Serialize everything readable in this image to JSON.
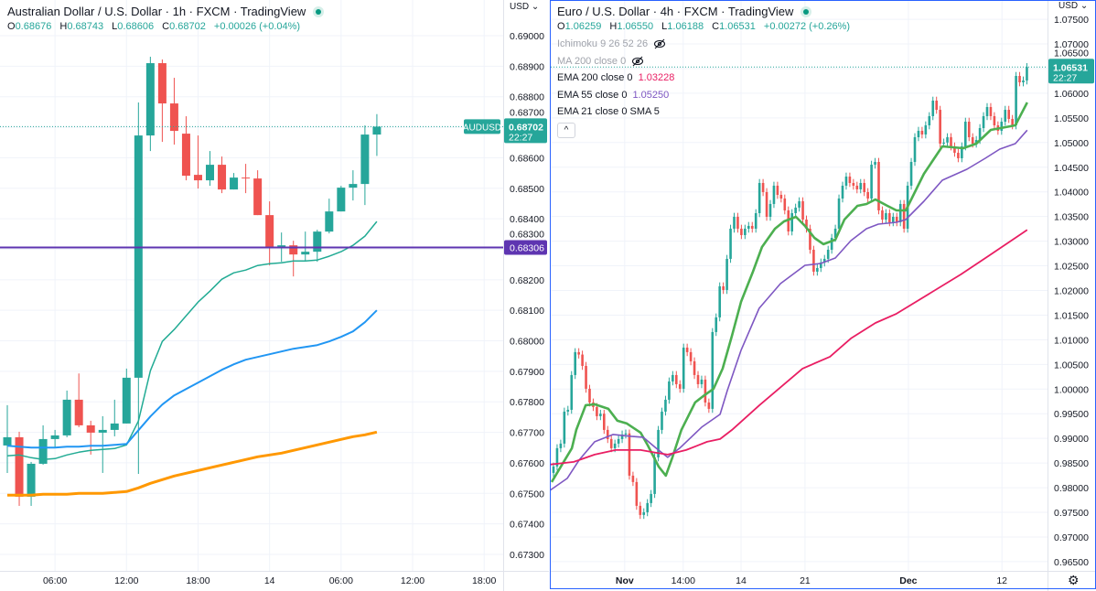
{
  "left_chart": {
    "title": "Australian Dollar / U.S. Dollar · 1h · FXCM · TradingView",
    "ohlc": {
      "o_label": "O",
      "o": "0.68676",
      "h_label": "H",
      "h": "0.68743",
      "l_label": "L",
      "l": "0.68606",
      "c_label": "C",
      "c": "0.68702",
      "change": "+0.00026 (+0.04%)"
    },
    "currency": "USD",
    "symbol_tag": "AUDUSD",
    "last_price": "0.68702",
    "countdown": "22:27",
    "hline_label": "0.68306"
  },
  "right_chart": {
    "title": "Euro / U.S. Dollar · 4h · FXCM · TradingView",
    "ohlc": {
      "o_label": "O",
      "o": "1.06259",
      "h_label": "H",
      "h": "1.06550",
      "l_label": "L",
      "l": "1.06188",
      "c_label": "C",
      "c": "1.06531",
      "change": "+0.00272 (+0.26%)"
    },
    "currency": "USD",
    "last_price": "1.06531",
    "countdown": "22:27",
    "indicators": [
      {
        "label": "Ichimoku 9 26 52 26",
        "hidden": true
      },
      {
        "label": "MA 200 close 0",
        "hidden": true
      },
      {
        "label": "EMA 200 close 0",
        "value": "1.03228",
        "color": "#e91e63"
      },
      {
        "label": "EMA 55 close 0",
        "value": "1.05250",
        "color": "#7e57c2"
      },
      {
        "label": "EMA 21 close 0 SMA 5"
      }
    ],
    "collapse_label": "^",
    "settings_icon": "gear-icon"
  },
  "colors": {
    "up": "#26a69a",
    "down": "#ef5350",
    "accent": "#2962ff",
    "hline": "#5e35b1"
  },
  "chart_data": [
    {
      "type": "candlestick",
      "symbol": "AUDUSD",
      "interval": "1h",
      "ylim": [
        0.67246,
        0.69117
      ],
      "y_ticks": [
        "0.69000",
        "0.68900",
        "0.68800",
        "0.68700",
        "0.68600",
        "0.68500",
        "0.68400",
        "0.68300",
        "0.68200",
        "0.68100",
        "0.68000",
        "0.67900",
        "0.67800",
        "0.67700",
        "0.67600",
        "0.67500",
        "0.67400",
        "0.67300"
      ],
      "x_ticks": [
        {
          "label": "06:00",
          "index": 4
        },
        {
          "label": "12:00",
          "index": 10
        },
        {
          "label": "18:00",
          "index": 16
        },
        {
          "label": "14",
          "index": 22
        },
        {
          "label": "06:00",
          "index": 28
        },
        {
          "label": "12:00",
          "index": 34
        },
        {
          "label": "18:00",
          "index": 40
        }
      ],
      "candles": [
        [
          0.67657,
          0.67789,
          0.67567,
          0.67684
        ],
        [
          0.67684,
          0.67702,
          0.67459,
          0.67489
        ],
        [
          0.67489,
          0.67603,
          0.67459,
          0.67597
        ],
        [
          0.67597,
          0.67723,
          0.67594,
          0.67678
        ],
        [
          0.67678,
          0.67708,
          0.67648,
          0.6769
        ],
        [
          0.6769,
          0.67837,
          0.67684,
          0.67807
        ],
        [
          0.67807,
          0.67893,
          0.67717,
          0.67723
        ],
        [
          0.67723,
          0.67738,
          0.67627,
          0.67699
        ],
        [
          0.67699,
          0.67753,
          0.67567,
          0.67708
        ],
        [
          0.67708,
          0.67807,
          0.67687,
          0.67729
        ],
        [
          0.67729,
          0.67909,
          0.67729,
          0.67879
        ],
        [
          0.67879,
          0.68781,
          0.67564,
          0.68673
        ],
        [
          0.68673,
          0.68931,
          0.68622,
          0.6891
        ],
        [
          0.6891,
          0.68922,
          0.68652,
          0.68778
        ],
        [
          0.68778,
          0.68862,
          0.68643,
          0.68688
        ],
        [
          0.68679,
          0.68736,
          0.68526,
          0.68541
        ],
        [
          0.68544,
          0.68673,
          0.68499,
          0.68526
        ],
        [
          0.68526,
          0.68622,
          0.68508,
          0.68577
        ],
        [
          0.68577,
          0.68604,
          0.68484,
          0.68496
        ],
        [
          0.68496,
          0.6855,
          0.68496,
          0.68535
        ],
        [
          0.68535,
          0.6858,
          0.68484,
          0.68532
        ],
        [
          0.68532,
          0.68559,
          0.68412,
          0.68412
        ],
        [
          0.68412,
          0.68457,
          0.68247,
          0.68307
        ],
        [
          0.68307,
          0.68355,
          0.68259,
          0.68313
        ],
        [
          0.68313,
          0.68328,
          0.68211,
          0.68283
        ],
        [
          0.68283,
          0.68358,
          0.68262,
          0.68292
        ],
        [
          0.68292,
          0.68364,
          0.68259,
          0.68358
        ],
        [
          0.68358,
          0.68466,
          0.68352,
          0.68424
        ],
        [
          0.68424,
          0.68508,
          0.68424,
          0.68502
        ],
        [
          0.68502,
          0.68559,
          0.6846,
          0.68514
        ],
        [
          0.68514,
          0.68706,
          0.68445,
          0.68676
        ],
        [
          0.68676,
          0.68743,
          0.68606,
          0.68702
        ]
      ],
      "series": [
        {
          "name": "EMA fast",
          "color": "#22ab94",
          "width": 1.5,
          "values": [
            0.67623,
            0.67626,
            0.67617,
            0.67611,
            0.67614,
            0.67626,
            0.67635,
            0.67641,
            0.67644,
            0.67647,
            0.67659,
            0.67737,
            0.67902,
            0.67998,
            0.68037,
            0.68082,
            0.68127,
            0.68163,
            0.68202,
            0.68223,
            0.68232,
            0.68247,
            0.68253,
            0.68256,
            0.68262,
            0.68262,
            0.68265,
            0.68277,
            0.68292,
            0.68313,
            0.68343,
            0.68391
          ]
        },
        {
          "name": "EMA mid",
          "color": "#2196f3",
          "width": 2,
          "values": [
            0.67656,
            0.67653,
            0.6765,
            0.6765,
            0.6765,
            0.67653,
            0.67653,
            0.67656,
            0.67656,
            0.67659,
            0.67662,
            0.67707,
            0.67752,
            0.67791,
            0.67821,
            0.67842,
            0.67863,
            0.67884,
            0.67905,
            0.67923,
            0.67938,
            0.67947,
            0.67956,
            0.67965,
            0.67974,
            0.6798,
            0.67986,
            0.67998,
            0.68013,
            0.68031,
            0.68061,
            0.681
          ]
        },
        {
          "name": "EMA slow",
          "color": "#ff9800",
          "width": 3,
          "values": [
            0.67494,
            0.67494,
            0.67494,
            0.67497,
            0.67497,
            0.67497,
            0.675,
            0.675,
            0.675,
            0.67503,
            0.67506,
            0.67518,
            0.67533,
            0.67545,
            0.67557,
            0.67566,
            0.67575,
            0.67584,
            0.67593,
            0.67602,
            0.67611,
            0.6762,
            0.67626,
            0.67632,
            0.67641,
            0.6765,
            0.67659,
            0.67668,
            0.67677,
            0.67686,
            0.67692,
            0.67701
          ]
        }
      ],
      "hline": 0.68306,
      "last_price": 0.68702
    },
    {
      "type": "candlestick",
      "symbol": "EURUSD",
      "interval": "4h",
      "ylim": [
        0.96313,
        1.07891
      ],
      "y_ticks": [
        "1.07500",
        "1.07000",
        "1.06500",
        "1.06000",
        "1.05500",
        "1.05000",
        "1.04500",
        "1.04000",
        "1.03500",
        "1.03000",
        "1.02500",
        "1.02000",
        "1.01500",
        "1.01000",
        "1.00500",
        "1.00000",
        "0.99500",
        "0.99000",
        "0.98500",
        "0.98000",
        "0.97500",
        "0.97000",
        "0.96500"
      ],
      "x_ticks": [
        {
          "label": "Nov",
          "index": 19.7,
          "bold": true
        },
        {
          "label": "14:00",
          "index": 35.9
        },
        {
          "label": "14",
          "index": 51.9
        },
        {
          "label": "21",
          "index": 69.6
        },
        {
          "label": "Dec",
          "index": 98.2,
          "bold": true
        },
        {
          "label": "12",
          "index": 124.1
        }
      ],
      "first_open": 0.983,
      "approx_wick": 0.0008,
      "closes": [
        0.9843,
        0.98801,
        0.98894,
        0.99543,
        0.9958,
        1.00285,
        1.00749,
        1.007,
        1.0047,
        1.00007,
        0.99728,
        0.99636,
        0.9945,
        0.995,
        0.99172,
        0.98986,
        0.98801,
        0.98894,
        0.98986,
        0.99079,
        0.991,
        0.98244,
        0.98115,
        0.97632,
        0.97447,
        0.97502,
        0.97688,
        0.97873,
        0.98615,
        0.99172,
        0.99543,
        0.99784,
        1.00155,
        1.00285,
        1.00099,
        1.00007,
        1.00841,
        1.00749,
        1.00563,
        1.00285,
        1.00099,
        1.00192,
        0.99728,
        0.99599,
        1.01157,
        1.01454,
        1.02084,
        1.0201,
        1.02641,
        1.03253,
        1.03494,
        1.03253,
        1.03123,
        1.03253,
        1.03309,
        1.03253,
        1.03568,
        1.0418,
        1.03995,
        1.03494,
        1.03754,
        1.04125,
        1.03939,
        1.03865,
        1.03624,
        1.03197,
        1.03568,
        1.0368,
        1.03809,
        1.03438,
        1.03253,
        1.02826,
        1.02381,
        1.02455,
        1.02567,
        1.02641,
        1.02826,
        1.03067,
        1.03253,
        1.03865,
        1.04125,
        1.0431,
        1.0418,
        1.04125,
        1.04051,
        1.0418,
        1.03995,
        1.03865,
        1.04551,
        1.04607,
        1.03624,
        1.03438,
        1.03568,
        1.03383,
        1.03494,
        1.03383,
        1.03754,
        1.03253,
        1.04125,
        1.04607,
        1.05108,
        1.05238,
        1.05164,
        1.05349,
        1.05535,
        1.0585,
        1.05664,
        1.04978,
        1.05,
        1.05108,
        1.04922,
        1.04793,
        1.04681,
        1.04922,
        1.05423,
        1.05108,
        1.04978,
        1.05052,
        1.05293,
        1.05535,
        1.0572,
        1.05535,
        1.05349,
        1.05238,
        1.05423,
        1.05664,
        1.05479,
        1.05349,
        1.06351,
        1.06221,
        1.06259,
        1.06531
      ],
      "series": [
        {
          "name": "EMA 21 close 0 SMA 5",
          "color": "#4caf50",
          "width": 2.6,
          "points": [
            [
              -0.5,
              0.98115
            ],
            [
              2.5,
              0.98486
            ],
            [
              5.1,
              0.98801
            ],
            [
              6.3,
              0.99172
            ],
            [
              8.9,
              0.99673
            ],
            [
              11.4,
              0.99691
            ],
            [
              15.2,
              0.99599
            ],
            [
              17.7,
              0.99357
            ],
            [
              20.3,
              0.99302
            ],
            [
              24.1,
              0.99116
            ],
            [
              26.1,
              0.98857
            ],
            [
              29.1,
              0.9843
            ],
            [
              31.1,
              0.98244
            ],
            [
              32.9,
              0.98615
            ],
            [
              35.4,
              0.99172
            ],
            [
              39.2,
              0.99728
            ],
            [
              41.8,
              0.99877
            ],
            [
              44.3,
              1.00007
            ],
            [
              46.8,
              1.00415
            ],
            [
              49.4,
              1.01083
            ],
            [
              51.9,
              1.01769
            ],
            [
              55.2,
              1.02381
            ],
            [
              57.7,
              1.02882
            ],
            [
              61.3,
              1.03253
            ],
            [
              63.8,
              1.03401
            ],
            [
              67.1,
              1.03494
            ],
            [
              69.6,
              1.03309
            ],
            [
              72.2,
              1.03067
            ],
            [
              74.7,
              1.02938
            ],
            [
              78.0,
              1.0303
            ],
            [
              80.5,
              1.03438
            ],
            [
              84.1,
              1.03717
            ],
            [
              86.6,
              1.03754
            ],
            [
              89.1,
              1.03846
            ],
            [
              92.4,
              1.03717
            ],
            [
              94.9,
              1.03624
            ],
            [
              97.5,
              1.03624
            ],
            [
              102.5,
              1.04366
            ],
            [
              107.6,
              1.04922
            ],
            [
              113.4,
              1.04885
            ],
            [
              117.0,
              1.04978
            ],
            [
              121.0,
              1.05256
            ],
            [
              127.8,
              1.05349
            ],
            [
              131.1,
              1.05813
            ]
          ]
        },
        {
          "name": "EMA 55 close 0",
          "color": "#7e57c2",
          "width": 1.6,
          "points": [
            [
              -1.3,
              0.97929
            ],
            [
              3.8,
              0.98189
            ],
            [
              7.1,
              0.9856
            ],
            [
              11.4,
              0.98931
            ],
            [
              16.5,
              0.99079
            ],
            [
              21.5,
              0.99042
            ],
            [
              24.8,
              0.99023
            ],
            [
              28.4,
              0.98801
            ],
            [
              31.6,
              0.98615
            ],
            [
              34.9,
              0.98801
            ],
            [
              41.0,
              0.99228
            ],
            [
              46.1,
              0.99487
            ],
            [
              48.1,
              0.9997
            ],
            [
              51.9,
              1.00786
            ],
            [
              56.9,
              1.01639
            ],
            [
              62.8,
              1.0214
            ],
            [
              69.6,
              1.02511
            ],
            [
              73.9,
              1.02548
            ],
            [
              78.0,
              1.02659
            ],
            [
              82.3,
              1.03012
            ],
            [
              86.6,
              1.03253
            ],
            [
              89.9,
              1.03346
            ],
            [
              94.9,
              1.03383
            ],
            [
              97.5,
              1.03438
            ],
            [
              102.5,
              1.03809
            ],
            [
              107.6,
              1.04236
            ],
            [
              114.4,
              1.04459
            ],
            [
              119.5,
              1.04681
            ],
            [
              123.5,
              1.04867
            ],
            [
              127.8,
              1.04978
            ],
            [
              131.1,
              1.0525
            ]
          ]
        },
        {
          "name": "EMA 200 close 0",
          "color": "#e91e63",
          "width": 1.8,
          "points": [
            [
              -1.3,
              0.98467
            ],
            [
              5.6,
              0.98523
            ],
            [
              11.4,
              0.98671
            ],
            [
              17.2,
              0.98764
            ],
            [
              24.1,
              0.98764
            ],
            [
              28.4,
              0.98708
            ],
            [
              31.6,
              0.98671
            ],
            [
              36.7,
              0.98764
            ],
            [
              42.5,
              0.98931
            ],
            [
              46.1,
              0.98986
            ],
            [
              49.4,
              0.99172
            ],
            [
              57.0,
              0.99673
            ],
            [
              68.9,
              1.00415
            ],
            [
              76.5,
              1.00656
            ],
            [
              82.3,
              1.01027
            ],
            [
              89.1,
              1.01342
            ],
            [
              94.9,
              1.01528
            ],
            [
              112.7,
              1.02325
            ],
            [
              120.3,
              1.02696
            ],
            [
              131.1,
              1.03228
            ]
          ]
        }
      ],
      "last_price": 1.06531
    }
  ]
}
